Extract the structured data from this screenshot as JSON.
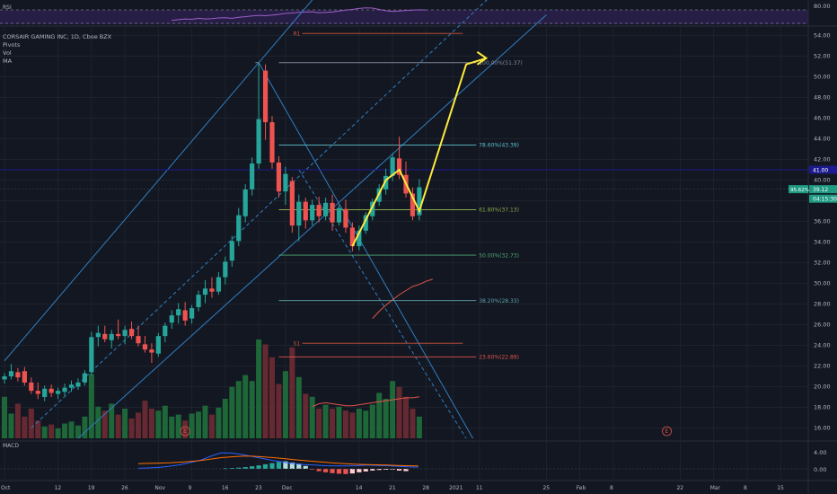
{
  "chart_data": {
    "type": "candlestick",
    "symbol_title": "CORSAIR GAMING INC, 1D, Cboe BZX",
    "indicators": [
      "Pivots",
      "Vol",
      "MA"
    ],
    "rsi_label": "RSI",
    "macd_label": "MACD",
    "y_ticks": [
      "54.00",
      "52.00",
      "50.00",
      "48.00",
      "46.00",
      "44.00",
      "42.00",
      "40.00",
      "38.00",
      "36.00",
      "34.00",
      "32.00",
      "30.00",
      "28.00",
      "26.00",
      "24.00",
      "22.00",
      "20.00",
      "18.00",
      "16.00"
    ],
    "rsi_ticks": [
      "80.00"
    ],
    "macd_ticks": [
      "4.00",
      "0.00"
    ],
    "x_ticks": [
      {
        "label": "Oct",
        "day": 0
      },
      {
        "label": "12",
        "day": 8
      },
      {
        "label": "19",
        "day": 13
      },
      {
        "label": "26",
        "day": 18
      },
      {
        "label": "Nov",
        "day": 23
      },
      {
        "label": "9",
        "day": 28
      },
      {
        "label": "16",
        "day": 33
      },
      {
        "label": "23",
        "day": 38
      },
      {
        "label": "Dec",
        "day": 42
      },
      {
        "label": "14",
        "day": 53
      },
      {
        "label": "21",
        "day": 58
      },
      {
        "label": "28",
        "day": 63
      },
      {
        "label": "2021",
        "day": 67
      },
      {
        "label": "11",
        "day": 71
      },
      {
        "label": "25",
        "day": 81
      },
      {
        "label": "Feb",
        "day": 86
      },
      {
        "label": "8",
        "day": 91
      },
      {
        "label": "22",
        "day": 101
      },
      {
        "label": "Mar",
        "day": 106
      },
      {
        "label": "8",
        "day": 111
      },
      {
        "label": "15",
        "day": 116
      }
    ],
    "price_range": [
      15,
      56
    ],
    "candles": [
      [
        20.7,
        21.3,
        20.3,
        21.0
      ],
      [
        21.0,
        22.2,
        20.7,
        21.5
      ],
      [
        21.4,
        21.8,
        20.5,
        20.9
      ],
      [
        21.5,
        21.9,
        20.1,
        20.4
      ],
      [
        20.4,
        20.9,
        19.3,
        19.6
      ],
      [
        19.6,
        20.4,
        18.8,
        19.3
      ],
      [
        19.0,
        20.1,
        18.6,
        19.8
      ],
      [
        19.8,
        20.2,
        19.0,
        19.4
      ],
      [
        19.3,
        19.9,
        18.8,
        19.6
      ],
      [
        19.5,
        20.3,
        19.1,
        19.9
      ],
      [
        19.9,
        20.6,
        19.5,
        20.2
      ],
      [
        20.0,
        20.8,
        19.7,
        20.4
      ],
      [
        20.4,
        21.6,
        20.1,
        21.3
      ],
      [
        21.4,
        25.3,
        21.1,
        24.8
      ],
      [
        24.8,
        25.9,
        23.9,
        25.2
      ],
      [
        25.1,
        25.9,
        24.3,
        24.6
      ],
      [
        24.5,
        25.5,
        23.7,
        25.1
      ],
      [
        25.1,
        26.5,
        24.6,
        24.9
      ],
      [
        24.9,
        25.9,
        24.1,
        25.5
      ],
      [
        25.6,
        26.3,
        24.6,
        24.9
      ],
      [
        24.9,
        25.9,
        23.9,
        24.2
      ],
      [
        24.1,
        24.9,
        23.3,
        23.6
      ],
      [
        23.6,
        24.2,
        22.3,
        23.3
      ],
      [
        23.2,
        25.2,
        22.9,
        24.9
      ],
      [
        24.9,
        26.2,
        24.3,
        25.9
      ],
      [
        26.2,
        27.4,
        25.6,
        26.9
      ],
      [
        26.9,
        28.1,
        26.1,
        27.5
      ],
      [
        27.4,
        28.2,
        25.9,
        26.4
      ],
      [
        26.6,
        27.9,
        26.1,
        27.6
      ],
      [
        27.7,
        29.3,
        27.3,
        28.9
      ],
      [
        28.9,
        30.3,
        28.1,
        29.5
      ],
      [
        29.5,
        30.6,
        28.6,
        29.2
      ],
      [
        29.2,
        31.1,
        28.9,
        30.6
      ],
      [
        30.6,
        32.6,
        29.9,
        32.1
      ],
      [
        32.2,
        34.6,
        31.6,
        34.1
      ],
      [
        34.1,
        37.3,
        33.6,
        36.6
      ],
      [
        36.5,
        39.6,
        35.9,
        39.1
      ],
      [
        39.1,
        42.2,
        38.5,
        41.6
      ],
      [
        41.6,
        51.4,
        41.1,
        45.9
      ],
      [
        50.6,
        51.2,
        43.9,
        45.6
      ],
      [
        45.6,
        46.2,
        41.1,
        41.7
      ],
      [
        41.7,
        42.3,
        38.3,
        38.9
      ],
      [
        38.9,
        41.3,
        37.6,
        40.6
      ],
      [
        39.9,
        40.3,
        34.9,
        35.6
      ],
      [
        35.6,
        38.6,
        34.1,
        37.9
      ],
      [
        37.9,
        38.3,
        35.3,
        36.1
      ],
      [
        36.1,
        38.1,
        35.6,
        37.6
      ],
      [
        37.6,
        38.4,
        35.9,
        36.5
      ],
      [
        36.5,
        38.3,
        36.1,
        37.8
      ],
      [
        37.8,
        38.6,
        35.1,
        35.9
      ],
      [
        35.9,
        37.6,
        35.6,
        37.3
      ],
      [
        37.2,
        38.1,
        34.9,
        35.4
      ],
      [
        35.4,
        35.9,
        33.1,
        33.6
      ],
      [
        33.6,
        35.6,
        33.2,
        35.1
      ],
      [
        35.1,
        36.9,
        34.8,
        36.6
      ],
      [
        36.5,
        38.2,
        36.1,
        37.9
      ],
      [
        37.9,
        39.6,
        37.5,
        39.2
      ],
      [
        39.1,
        41.1,
        38.6,
        40.4
      ],
      [
        40.4,
        42.6,
        39.9,
        42.2
      ],
      [
        42.1,
        44.2,
        40.1,
        40.5
      ],
      [
        40.5,
        41.8,
        38.3,
        38.7
      ],
      [
        38.7,
        39.3,
        36.1,
        36.5
      ],
      [
        36.6,
        40.1,
        36.1,
        39.3
      ]
    ],
    "volume_ratio": [
      0.42,
      0.25,
      0.35,
      0.22,
      0.3,
      0.18,
      0.12,
      0.14,
      0.1,
      0.15,
      0.17,
      0.13,
      0.22,
      0.65,
      0.32,
      0.28,
      0.35,
      0.24,
      0.3,
      0.2,
      0.26,
      0.38,
      0.3,
      0.28,
      0.33,
      0.22,
      0.24,
      0.18,
      0.25,
      0.27,
      0.33,
      0.24,
      0.31,
      0.4,
      0.52,
      0.58,
      0.64,
      0.58,
      1.0,
      0.95,
      0.82,
      0.55,
      0.68,
      0.92,
      0.62,
      0.45,
      0.42,
      0.3,
      0.34,
      0.3,
      0.32,
      0.28,
      0.26,
      0.3,
      0.28,
      0.34,
      0.46,
      0.4,
      0.58,
      0.52,
      0.42,
      0.3,
      0.22
    ],
    "volume_ma": [
      0.32,
      0.32,
      0.32,
      0.32,
      0.31,
      0.31,
      0.31,
      0.31,
      0.31,
      0.32,
      0.32,
      0.32,
      0.32,
      0.32,
      0.32,
      0.32,
      0.32,
      0.32,
      0.32,
      0.32,
      0.32,
      0.32,
      0.32,
      0.32,
      0.32,
      0.32,
      0.32,
      0.32,
      0.32,
      0.32,
      0.32,
      0.32,
      0.32,
      0.32,
      0.32,
      0.32,
      0.32,
      0.32,
      0.32,
      0.32,
      0.32,
      0.32,
      0.32,
      0.32,
      0.32,
      0.32,
      0.32,
      0.35,
      0.36,
      0.35,
      0.34,
      0.33,
      0.33,
      0.34,
      0.35,
      0.36,
      0.37,
      0.38,
      0.39,
      0.4,
      0.41,
      0.41,
      0.42
    ],
    "price_ma": {
      "start_day": 55,
      "values": [
        26.6,
        27.3,
        27.9,
        28.4,
        28.9,
        29.3,
        29.7,
        29.9,
        30.2,
        30.4
      ]
    },
    "fib_levels": [
      {
        "label": "100.00%(51.37)",
        "price": 51.37,
        "color": "#7e8797"
      },
      {
        "label": "78.60%(43.39)",
        "price": 43.39,
        "color": "#5bc2cc"
      },
      {
        "label": "61.80%(37.13)",
        "price": 37.13,
        "color": "#89a94a"
      },
      {
        "label": "50.00%(32.73)",
        "price": 32.73,
        "color": "#4fa973"
      },
      {
        "label": "38.20%(28.33)",
        "price": 28.33,
        "color": "#5fa2a8"
      },
      {
        "label": "23.60%(22.89)",
        "price": 22.89,
        "color": "#e0544a"
      }
    ],
    "pivots": [
      {
        "label": "R1",
        "price": 54.2
      },
      {
        "label": "S1",
        "price": 24.2
      }
    ],
    "hline_price": 41.0,
    "price_badges": [
      {
        "label": "41.00",
        "price": 41.0,
        "bg": "#1c1a8f"
      },
      {
        "label": "39.12",
        "price": 39.12,
        "bg": "#1f9b83"
      },
      {
        "label": "04:15:30",
        "price": 38.2,
        "bg": "#1f9b83"
      }
    ],
    "left_badge": {
      "label": "95.62%",
      "price": 39.12
    },
    "projection_path": [
      [
        52,
        33.6
      ],
      [
        57,
        40.0
      ],
      [
        59,
        41.0
      ],
      [
        62,
        37.0
      ],
      [
        69,
        51.2
      ],
      [
        72,
        51.8
      ]
    ],
    "channel_upper": [
      [
        0,
        22.5
      ],
      [
        52,
        62
      ]
    ],
    "channel_lower": [
      [
        11,
        15
      ],
      [
        81,
        56
      ]
    ],
    "channel_mid_dashed": [
      [
        4,
        16
      ],
      [
        73,
        58
      ]
    ],
    "descending_line": [
      [
        38,
        51.37
      ],
      [
        70,
        15
      ]
    ],
    "descending_dashed": [
      [
        44,
        41
      ],
      [
        69,
        15
      ]
    ],
    "rsi_values": [
      42,
      44,
      46,
      45,
      48,
      46,
      47,
      49,
      50,
      48,
      51,
      53,
      55,
      57,
      56,
      58,
      60,
      63,
      64,
      66,
      67,
      68,
      65,
      66,
      67,
      70,
      73,
      75,
      78,
      80,
      79,
      75,
      71,
      69,
      70,
      72,
      73,
      74,
      73
    ],
    "rsi_start_day": 23,
    "macd_hist": [
      0.1,
      0.15,
      0.2,
      0.3,
      0.45,
      0.6,
      0.8,
      1.0,
      1.2,
      1.3,
      1.1,
      0.9,
      0.5,
      -0.1,
      -0.4,
      -0.6,
      -0.75,
      -0.85,
      -0.9,
      -0.8,
      -0.6,
      -0.45,
      -0.3,
      -0.2,
      -0.15,
      -0.1,
      -0.3,
      -0.4
    ],
    "macd_hist_start_day": 33,
    "macd_line": [
      0.2,
      0.3,
      0.5,
      0.9,
      1.4,
      2.2,
      3.0,
      4.4,
      5.6,
      5.5,
      5.0,
      4.3,
      3.6,
      2.9,
      2.3,
      1.8,
      1.5,
      1.3,
      1.1,
      1.0,
      1.0,
      1.1,
      1.3,
      1.2,
      1.1,
      0.9,
      0.7,
      0.6
    ],
    "signal_line": [
      1.8,
      1.9,
      2.0,
      2.1,
      2.3,
      2.6,
      2.9,
      3.4,
      3.9,
      4.2,
      4.4,
      4.4,
      4.2,
      3.9,
      3.6,
      3.2,
      2.9,
      2.6,
      2.3,
      2.0,
      1.8,
      1.6,
      1.5,
      1.4,
      1.3,
      1.2,
      1.1,
      1.0
    ],
    "macd_line_start_day": 20,
    "event_markers": [
      {
        "label": "E",
        "day": 27
      },
      {
        "label": "E",
        "day": 99
      }
    ]
  }
}
